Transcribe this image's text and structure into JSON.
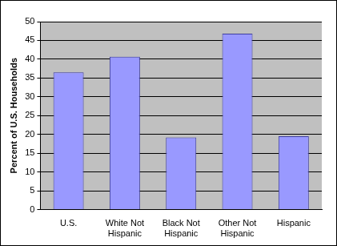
{
  "chart_data": {
    "type": "bar",
    "y_label": "Percent of U.S. Households",
    "categories": [
      "U.S.",
      "White Not Hispanic",
      "Black Not Hispanic",
      "Other Not Hispanic",
      "Hispanic"
    ],
    "values": [
      36.5,
      40.7,
      19.2,
      46.8,
      19.5
    ],
    "color": "#9999ff",
    "ylim": [
      0,
      50
    ],
    "yticks": [
      0,
      5,
      10,
      15,
      20,
      25,
      30,
      35,
      40,
      45,
      50
    ],
    "grid": true
  }
}
